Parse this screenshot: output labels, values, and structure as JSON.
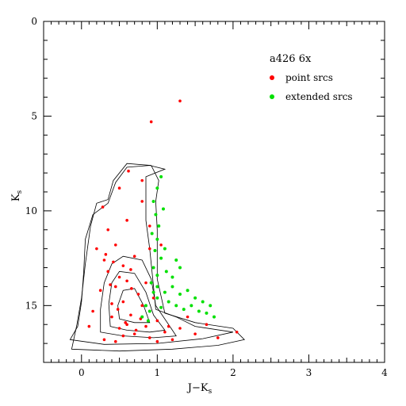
{
  "chart_data": {
    "type": "scatter",
    "title": "",
    "annotation": "a426 6x",
    "xlabel": "J−K",
    "xlabel_sub": "s",
    "ylabel": "K",
    "ylabel_sub": "s",
    "xlim": [
      -0.5,
      4
    ],
    "ylim": [
      18,
      0
    ],
    "x_ticks": [
      0,
      1,
      2,
      3,
      4
    ],
    "x_tick_labels": [
      "0",
      "1",
      "2",
      "3",
      "4"
    ],
    "y_ticks": [
      0,
      5,
      10,
      15
    ],
    "y_tick_labels": [
      "0",
      "5",
      "10",
      "15"
    ],
    "grid": false,
    "legend_placement": "top-right",
    "colors": {
      "point": "#ff0000",
      "extended": "#00e000",
      "contour": "#000000"
    },
    "series": [
      {
        "name": "point srcs",
        "color": "#ff0000",
        "points": [
          [
            0.35,
            13.2
          ],
          [
            0.45,
            14.0
          ],
          [
            0.55,
            14.8
          ],
          [
            0.65,
            15.5
          ],
          [
            0.5,
            16.2
          ],
          [
            0.7,
            16.5
          ],
          [
            0.9,
            16.7
          ],
          [
            1.1,
            16.4
          ],
          [
            1.3,
            16.2
          ],
          [
            0.3,
            12.6
          ],
          [
            0.4,
            15.6
          ],
          [
            0.6,
            16.0
          ],
          [
            0.8,
            15.0
          ],
          [
            0.25,
            14.2
          ],
          [
            0.85,
            13.8
          ],
          [
            0.5,
            13.5
          ],
          [
            0.75,
            14.4
          ],
          [
            1.0,
            15.8
          ],
          [
            1.5,
            16.5
          ],
          [
            1.8,
            16.7
          ],
          [
            0.2,
            12.0
          ],
          [
            0.35,
            11.0
          ],
          [
            0.6,
            10.5
          ],
          [
            0.8,
            9.5
          ],
          [
            0.3,
            16.8
          ],
          [
            0.45,
            16.9
          ],
          [
            1.2,
            16.8
          ],
          [
            0.95,
            14.6
          ],
          [
            0.55,
            12.9
          ],
          [
            0.4,
            14.9
          ],
          [
            0.65,
            13.1
          ],
          [
            0.7,
            12.4
          ],
          [
            0.9,
            12.0
          ],
          [
            1.05,
            11.8
          ],
          [
            0.15,
            15.3
          ],
          [
            0.1,
            16.1
          ],
          [
            2.05,
            16.4
          ],
          [
            1.65,
            16.0
          ],
          [
            0.28,
            9.8
          ],
          [
            0.5,
            8.8
          ],
          [
            0.62,
            7.9
          ],
          [
            0.8,
            8.4
          ],
          [
            0.9,
            10.8
          ],
          [
            0.45,
            11.8
          ],
          [
            1.4,
            15.6
          ],
          [
            0.58,
            15.9
          ],
          [
            0.72,
            16.3
          ],
          [
            0.38,
            13.9
          ],
          [
            0.85,
            16.1
          ],
          [
            0.92,
            5.3
          ],
          [
            1.3,
            4.2
          ],
          [
            0.32,
            12.3
          ],
          [
            0.48,
            15.2
          ],
          [
            0.66,
            14.1
          ],
          [
            0.78,
            15.7
          ],
          [
            0.55,
            16.6
          ],
          [
            1.0,
            16.9
          ],
          [
            1.15,
            16.1
          ],
          [
            0.42,
            12.7
          ],
          [
            0.6,
            13.7
          ]
        ]
      },
      {
        "name": "extended srcs",
        "color": "#00e000",
        "points": [
          [
            0.95,
            9.5
          ],
          [
            1.0,
            8.8
          ],
          [
            1.05,
            8.2
          ],
          [
            0.98,
            10.2
          ],
          [
            1.02,
            10.8
          ],
          [
            1.0,
            11.5
          ],
          [
            0.97,
            12.1
          ],
          [
            1.05,
            12.5
          ],
          [
            1.1,
            12.0
          ],
          [
            0.95,
            13.0
          ],
          [
            1.0,
            13.4
          ],
          [
            0.92,
            13.8
          ],
          [
            1.0,
            14.0
          ],
          [
            1.1,
            14.3
          ],
          [
            1.2,
            14.0
          ],
          [
            1.3,
            14.4
          ],
          [
            1.4,
            14.2
          ],
          [
            1.5,
            14.6
          ],
          [
            1.6,
            14.8
          ],
          [
            1.7,
            15.0
          ],
          [
            1.15,
            14.8
          ],
          [
            1.25,
            15.0
          ],
          [
            1.35,
            15.2
          ],
          [
            1.45,
            15.0
          ],
          [
            1.55,
            15.3
          ],
          [
            1.65,
            15.4
          ],
          [
            0.85,
            15.0
          ],
          [
            0.9,
            15.3
          ],
          [
            0.8,
            15.6
          ],
          [
            0.88,
            15.8
          ],
          [
            1.2,
            13.5
          ],
          [
            1.3,
            13.0
          ],
          [
            1.25,
            12.6
          ],
          [
            1.0,
            14.6
          ],
          [
            1.05,
            15.1
          ],
          [
            0.95,
            14.3
          ],
          [
            1.75,
            15.6
          ],
          [
            1.12,
            13.2
          ],
          [
            1.08,
            9.9
          ],
          [
            0.93,
            11.2
          ]
        ]
      }
    ],
    "contours": [
      [
        [
          0.25,
          16.4
        ],
        [
          0.55,
          16.6
        ],
        [
          0.95,
          16.7
        ],
        [
          1.25,
          16.6
        ],
        [
          1.2,
          16.3
        ],
        [
          0.98,
          15.0
        ],
        [
          0.92,
          13.6
        ],
        [
          0.8,
          12.6
        ],
        [
          0.55,
          12.4
        ],
        [
          0.4,
          12.8
        ],
        [
          0.3,
          13.8
        ],
        [
          0.25,
          15.2
        ],
        [
          0.25,
          16.4
        ]
      ],
      [
        [
          0.38,
          16.1
        ],
        [
          0.6,
          16.3
        ],
        [
          0.9,
          16.4
        ],
        [
          1.1,
          16.3
        ],
        [
          0.95,
          15.5
        ],
        [
          0.85,
          14.3
        ],
        [
          0.7,
          13.3
        ],
        [
          0.5,
          13.2
        ],
        [
          0.4,
          13.8
        ],
        [
          0.36,
          14.9
        ],
        [
          0.38,
          16.1
        ]
      ],
      [
        [
          0.5,
          15.7
        ],
        [
          0.7,
          15.9
        ],
        [
          0.9,
          15.9
        ],
        [
          0.82,
          15.0
        ],
        [
          0.7,
          14.1
        ],
        [
          0.55,
          14.2
        ],
        [
          0.48,
          15.0
        ],
        [
          0.5,
          15.7
        ]
      ],
      [
        [
          -0.15,
          16.8
        ],
        [
          0.3,
          17.05
        ],
        [
          1.0,
          17.0
        ],
        [
          1.6,
          16.75
        ],
        [
          2.0,
          16.4
        ],
        [
          1.5,
          16.1
        ],
        [
          1.25,
          15.6
        ],
        [
          0.98,
          15.2
        ],
        [
          0.95,
          14.0
        ],
        [
          0.9,
          12.0
        ],
        [
          0.85,
          10.5
        ],
        [
          0.85,
          9.2
        ],
        [
          0.85,
          8.2
        ],
        [
          1.1,
          7.8
        ],
        [
          0.9,
          7.6
        ],
        [
          0.6,
          7.7
        ],
        [
          0.45,
          8.5
        ],
        [
          0.35,
          9.6
        ],
        [
          0.15,
          10.2
        ],
        [
          0.05,
          11.5
        ],
        [
          0.03,
          13.2
        ],
        [
          0.0,
          14.8
        ],
        [
          -0.05,
          16.1
        ],
        [
          -0.15,
          16.8
        ]
      ],
      [
        [
          -0.13,
          17.3
        ],
        [
          0.5,
          17.4
        ],
        [
          1.2,
          17.3
        ],
        [
          1.8,
          17.1
        ],
        [
          2.15,
          16.8
        ],
        [
          2.0,
          16.2
        ],
        [
          1.5,
          15.9
        ],
        [
          1.1,
          15.4
        ],
        [
          1.0,
          13.6
        ],
        [
          1.0,
          11.0
        ],
        [
          0.98,
          9.5
        ],
        [
          1.02,
          8.4
        ],
        [
          0.92,
          7.6
        ],
        [
          0.6,
          7.5
        ],
        [
          0.42,
          8.4
        ],
        [
          0.35,
          9.4
        ],
        [
          0.2,
          9.6
        ],
        [
          0.12,
          10.8
        ],
        [
          0.05,
          12.8
        ],
        [
          0.0,
          14.6
        ],
        [
          -0.06,
          16.0
        ],
        [
          -0.13,
          17.3
        ]
      ]
    ],
    "legend": [
      {
        "label": "point srcs",
        "color": "#ff0000"
      },
      {
        "label": "extended srcs",
        "color": "#00e000"
      }
    ]
  }
}
